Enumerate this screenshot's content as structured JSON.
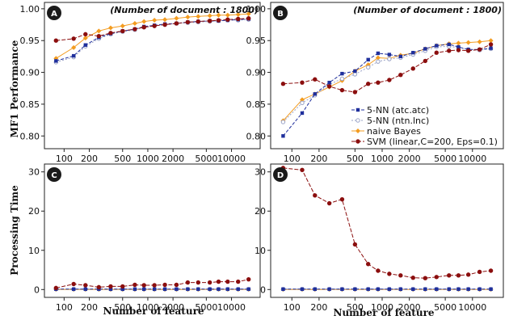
{
  "figure": {
    "ylabel_top": "MF1 Performance",
    "ylabel_bottom": "Processing Time",
    "xlabel": "Number of feature"
  },
  "colors": {
    "knn_atc": "#1f2f9c",
    "knn_ntn": "#9aa3c7",
    "naive_bayes": "#f39c20",
    "svm": "#8b0e0e",
    "badge": "#1a1a1a"
  },
  "chart_data": [
    {
      "id": "A",
      "type": "line",
      "title": "(Number of document : 1800)",
      "x_ticks": [
        "100",
        "200",
        "500",
        "1000",
        "2000",
        "5000",
        "10000"
      ],
      "x_tick_values": [
        100,
        200,
        500,
        1000,
        2000,
        5000,
        10000
      ],
      "x": [
        80,
        130,
        180,
        260,
        360,
        500,
        700,
        900,
        1200,
        1600,
        2200,
        3000,
        4000,
        5500,
        7000,
        9000,
        12000,
        16000
      ],
      "ylim": [
        0.78,
        1.01
      ],
      "y_ticks": [
        "0.80",
        "0.85",
        "0.90",
        "0.95",
        "1.00"
      ],
      "y_tick_values": [
        0.8,
        0.85,
        0.9,
        0.95,
        1.0
      ],
      "series": [
        {
          "key": "knn_atc",
          "values": [
            0.918,
            0.926,
            0.943,
            0.955,
            0.961,
            0.965,
            0.968,
            0.972,
            0.974,
            0.976,
            0.977,
            0.979,
            0.98,
            0.981,
            0.981,
            0.982,
            0.983,
            0.984
          ]
        },
        {
          "key": "knn_ntn",
          "values": [
            0.916,
            0.924,
            0.941,
            0.953,
            0.96,
            0.964,
            0.967,
            0.971,
            0.973,
            0.975,
            0.977,
            0.978,
            0.979,
            0.98,
            0.981,
            0.982,
            0.982,
            0.983
          ]
        },
        {
          "key": "naive_bayes",
          "values": [
            0.922,
            0.939,
            0.954,
            0.965,
            0.97,
            0.973,
            0.977,
            0.98,
            0.982,
            0.983,
            0.985,
            0.987,
            0.988,
            0.989,
            0.99,
            0.99,
            0.991,
            0.992
          ]
        },
        {
          "key": "svm",
          "values": [
            0.95,
            0.953,
            0.96,
            0.957,
            0.962,
            0.965,
            0.968,
            0.971,
            0.973,
            0.975,
            0.977,
            0.979,
            0.98,
            0.981,
            0.982,
            0.983,
            0.984,
            0.985
          ]
        }
      ]
    },
    {
      "id": "B",
      "type": "line",
      "title": "(Number of document : 1800)",
      "x_ticks": [
        "100",
        "200",
        "500",
        "1000",
        "2000",
        "5000",
        "10000"
      ],
      "x_tick_values": [
        100,
        200,
        500,
        1000,
        2000,
        5000,
        10000
      ],
      "x": [
        80,
        130,
        180,
        260,
        360,
        500,
        700,
        900,
        1200,
        1600,
        2200,
        3000,
        4000,
        5500,
        7000,
        9000,
        12000,
        16000
      ],
      "ylim": [
        0.78,
        1.01
      ],
      "y_ticks": [
        "0.80",
        "0.85",
        "0.90",
        "0.95",
        "1.00"
      ],
      "y_tick_values": [
        0.8,
        0.85,
        0.9,
        0.95,
        1.0
      ],
      "legend": [
        {
          "key": "knn_atc",
          "label": "5-NN (atc.atc)"
        },
        {
          "key": "knn_ntn",
          "label": "5-NN (ntn.lnc)"
        },
        {
          "key": "naive_bayes",
          "label": "naive Bayes"
        },
        {
          "key": "svm",
          "label": "SVM (linear,C=200, Eps=0.1)"
        }
      ],
      "series": [
        {
          "key": "knn_atc",
          "values": [
            0.8,
            0.836,
            0.866,
            0.884,
            0.898,
            0.902,
            0.92,
            0.93,
            0.928,
            0.925,
            0.931,
            0.937,
            0.942,
            0.944,
            0.94,
            0.936,
            0.936,
            0.938
          ]
        },
        {
          "key": "knn_ntn",
          "values": [
            0.822,
            0.852,
            0.864,
            0.881,
            0.89,
            0.897,
            0.908,
            0.917,
            0.921,
            0.923,
            0.928,
            0.934,
            0.94,
            0.941,
            0.939,
            0.936,
            0.935,
            0.937
          ]
        },
        {
          "key": "naive_bayes",
          "values": [
            0.824,
            0.857,
            0.866,
            0.877,
            0.887,
            0.902,
            0.912,
            0.923,
            0.922,
            0.927,
            0.93,
            0.937,
            0.942,
            0.945,
            0.946,
            0.947,
            0.948,
            0.95
          ]
        },
        {
          "key": "svm",
          "values": [
            0.882,
            0.884,
            0.889,
            0.878,
            0.872,
            0.869,
            0.882,
            0.884,
            0.888,
            0.896,
            0.906,
            0.918,
            0.931,
            0.934,
            0.935,
            0.934,
            0.936,
            0.944
          ]
        }
      ]
    },
    {
      "id": "C",
      "type": "line",
      "title": "",
      "x_ticks": [
        "100",
        "200",
        "500",
        "1000",
        "2000",
        "5000",
        "10000"
      ],
      "x_tick_values": [
        100,
        200,
        500,
        1000,
        2000,
        5000,
        10000
      ],
      "x": [
        80,
        130,
        180,
        260,
        360,
        500,
        700,
        900,
        1200,
        1600,
        2200,
        3000,
        4000,
        5500,
        7000,
        9000,
        12000,
        16000
      ],
      "ylim": [
        -2,
        32
      ],
      "y_ticks": [
        "0",
        "10",
        "20",
        "30"
      ],
      "y_tick_values": [
        0,
        10,
        20,
        30
      ],
      "series": [
        {
          "key": "knn_atc",
          "values": [
            0.1,
            0.1,
            0.1,
            0.1,
            0.1,
            0.1,
            0.1,
            0.1,
            0.1,
            0.1,
            0.1,
            0.1,
            0.1,
            0.1,
            0.1,
            0.1,
            0.1,
            0.1
          ]
        },
        {
          "key": "knn_ntn",
          "values": [
            0.1,
            0.1,
            0.1,
            0.1,
            0.1,
            0.1,
            0.1,
            0.1,
            0.1,
            0.1,
            0.1,
            0.1,
            0.1,
            0.1,
            0.1,
            0.1,
            0.1,
            0.1
          ]
        },
        {
          "key": "naive_bayes",
          "values": [
            0.0,
            0.0,
            0.0,
            0.0,
            0.0,
            0.0,
            0.0,
            0.0,
            0.0,
            0.0,
            0.0,
            0.0,
            0.0,
            0.0,
            0.0,
            0.0,
            0.0,
            0.0
          ]
        },
        {
          "key": "svm",
          "values": [
            0.4,
            1.4,
            1.1,
            0.6,
            0.8,
            0.8,
            1.2,
            1.1,
            1.1,
            1.2,
            1.2,
            1.8,
            1.8,
            1.8,
            2.0,
            2.0,
            2.0,
            2.6
          ]
        }
      ]
    },
    {
      "id": "D",
      "type": "line",
      "title": "",
      "x_ticks": [
        "100",
        "200",
        "500",
        "1000",
        "2000",
        "5000",
        "10000"
      ],
      "x_tick_values": [
        100,
        200,
        500,
        1000,
        2000,
        5000,
        10000
      ],
      "x": [
        80,
        130,
        180,
        260,
        360,
        500,
        700,
        900,
        1200,
        1600,
        2200,
        3000,
        4000,
        5500,
        7000,
        9000,
        12000,
        16000
      ],
      "ylim": [
        -2,
        32
      ],
      "y_ticks": [
        "0",
        "10",
        "20",
        "30"
      ],
      "y_tick_values": [
        0,
        10,
        20,
        30
      ],
      "series": [
        {
          "key": "knn_atc",
          "values": [
            0.1,
            0.1,
            0.1,
            0.1,
            0.1,
            0.1,
            0.1,
            0.1,
            0.1,
            0.1,
            0.1,
            0.1,
            0.1,
            0.1,
            0.1,
            0.1,
            0.1,
            0.1
          ]
        },
        {
          "key": "knn_ntn",
          "values": [
            0.1,
            0.1,
            0.1,
            0.1,
            0.1,
            0.1,
            0.1,
            0.1,
            0.1,
            0.1,
            0.1,
            0.1,
            0.1,
            0.1,
            0.1,
            0.1,
            0.1,
            0.1
          ]
        },
        {
          "key": "naive_bayes",
          "values": [
            0.0,
            0.0,
            0.0,
            0.0,
            0.0,
            0.0,
            0.0,
            0.0,
            0.0,
            0.0,
            0.0,
            0.0,
            0.0,
            0.0,
            0.0,
            0.0,
            0.0,
            0.0
          ]
        },
        {
          "key": "svm",
          "values": [
            31.0,
            30.5,
            24.0,
            22.0,
            23.0,
            11.5,
            6.5,
            4.8,
            4.0,
            3.6,
            3.0,
            2.9,
            3.2,
            3.6,
            3.6,
            3.8,
            4.5,
            4.8
          ]
        }
      ]
    }
  ]
}
